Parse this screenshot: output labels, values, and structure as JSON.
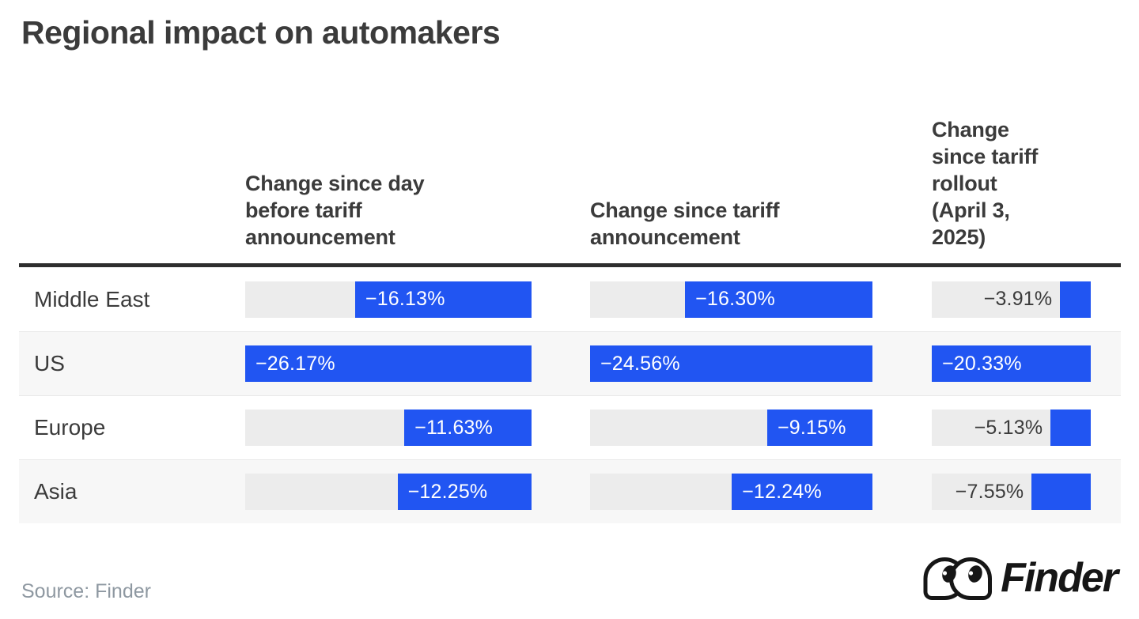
{
  "title": "Regional impact on automakers",
  "table": {
    "column_headers": [
      "Change since day\nbefore tariff\nannouncement",
      "Change since tariff\nannouncement",
      "Change\nsince tariff\nrollout\n(April 3,\n2025)"
    ],
    "row_labels": [
      "Middle East",
      "US",
      "Europe",
      "Asia"
    ]
  },
  "chart_data": {
    "type": "bar",
    "orientation": "horizontal",
    "title": "Regional impact on automakers",
    "categories": [
      "Middle East",
      "US",
      "Europe",
      "Asia"
    ],
    "series": [
      {
        "name": "Change since day before tariff announcement",
        "values": [
          -16.13,
          -26.17,
          -11.63,
          -12.25
        ],
        "labels": [
          "−16.13%",
          "−26.17%",
          "−11.63%",
          "−12.25%"
        ]
      },
      {
        "name": "Change since tariff announcement",
        "values": [
          -16.3,
          -24.56,
          -9.15,
          -12.24
        ],
        "labels": [
          "−16.30%",
          "−24.56%",
          "−9.15%",
          "−12.24%"
        ]
      },
      {
        "name": "Change since tariff rollout (April 3, 2025)",
        "values": [
          -3.91,
          -20.33,
          -5.13,
          -7.55
        ],
        "labels": [
          "−3.91%",
          "−20.33%",
          "−5.13%",
          "−7.55%"
        ]
      }
    ],
    "value_scaling": "bars right-anchored; each column scaled so its largest magnitude (US) fills the track",
    "legend_position": "none",
    "grid": false
  },
  "footer": {
    "source": "Source: Finder",
    "brand": "Finder"
  },
  "colors": {
    "bar_blue": "#2155f2",
    "track_gray": "#ececec",
    "row_stripe": "#f7f7f7",
    "text_dark": "#3b3b3b",
    "divider": "#2e2e2e",
    "source_gray": "#8e98a1",
    "logo_ink": "#161616"
  }
}
